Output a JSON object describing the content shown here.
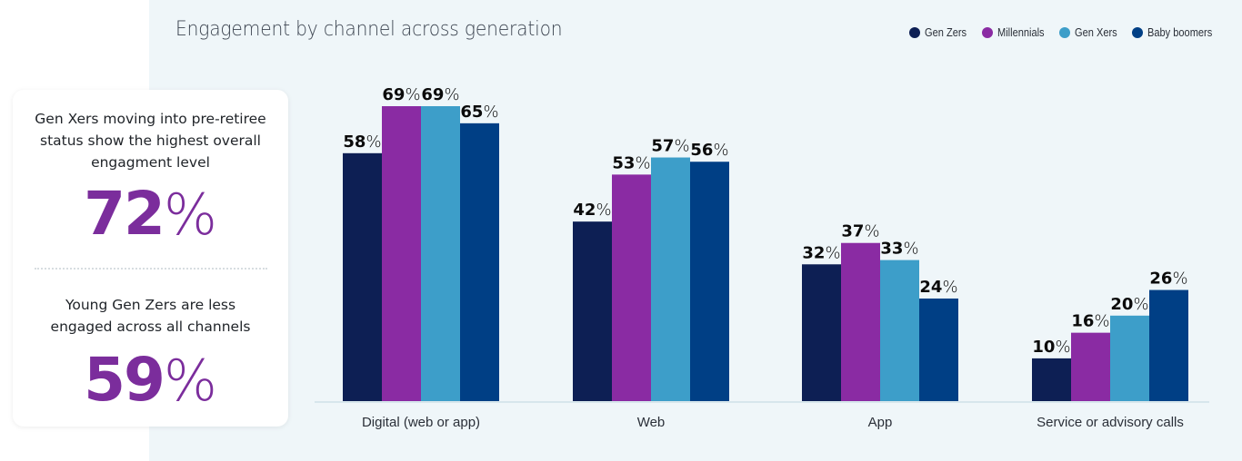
{
  "summary_card": {
    "highlight_1": {
      "text": "Gen Xers moving into pre-retiree status show the highest overall engagment level",
      "lines": [
        "Gen Xers moving into pre-retiree",
        "status show the highest overall",
        "engagment level"
      ],
      "value_number": "72",
      "value_suffix": "%"
    },
    "highlight_2": {
      "text": "Young Gen Zers are less engaged across all channels",
      "lines": [
        "Young Gen Zers are less",
        "engaged across all channels"
      ],
      "value_number": "59",
      "value_suffix": "%"
    }
  },
  "colors": {
    "gen_zers": "#0d1f54",
    "millennials": "#8a2ba3",
    "gen_xers": "#3d9ec9",
    "baby_boomers": "#003f85",
    "panel_background": "#eff6f9",
    "highlight": "#7b2d9c"
  },
  "chart_data": {
    "type": "bar",
    "title": "Engagement by channel across generation",
    "xlabel": "",
    "ylabel": "",
    "ylim": [
      0,
      100
    ],
    "grid": false,
    "legend_position": "top-right",
    "value_suffix": "%",
    "categories": [
      "Digital (web or app)",
      "Web",
      "App",
      "Service or advisory calls"
    ],
    "series": [
      {
        "name": "Gen Zers",
        "color": "#0d1f54",
        "values": [
          58,
          42,
          32,
          10
        ]
      },
      {
        "name": "Millennials",
        "color": "#8a2ba3",
        "values": [
          69,
          53,
          37,
          16
        ]
      },
      {
        "name": "Gen Xers",
        "color": "#3d9ec9",
        "values": [
          69,
          57,
          33,
          20
        ]
      },
      {
        "name": "Baby boomers",
        "color": "#003f85",
        "values": [
          65,
          56,
          24,
          26
        ]
      }
    ]
  }
}
